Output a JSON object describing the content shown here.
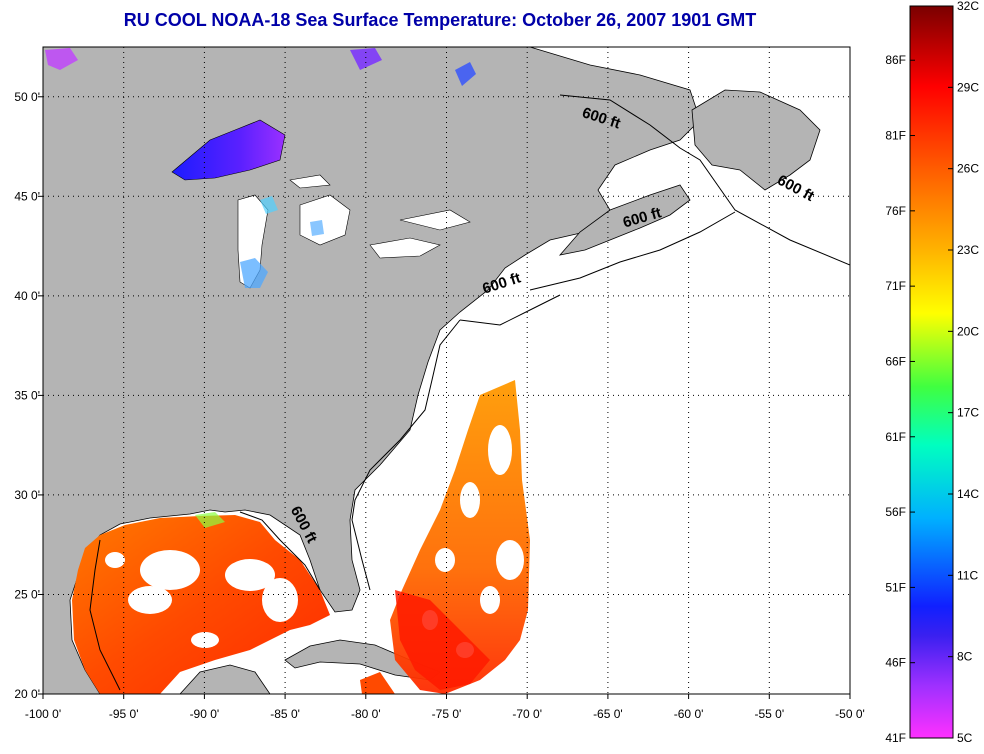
{
  "title": "RU COOL  NOAA-18  Sea Surface Temperature:  October 26, 2007 1901 GMT",
  "map": {
    "lon_range": [
      -100,
      -50
    ],
    "lat_range": [
      20,
      52.5
    ],
    "x_ticks": [
      {
        "value": -100,
        "label": "-100 0'"
      },
      {
        "value": -95,
        "label": "-95 0'"
      },
      {
        "value": -90,
        "label": "-90 0'"
      },
      {
        "value": -85,
        "label": "-85 0'"
      },
      {
        "value": -80,
        "label": "-80 0'"
      },
      {
        "value": -75,
        "label": "-75 0'"
      },
      {
        "value": -70,
        "label": "-70 0'"
      },
      {
        "value": -65,
        "label": "-65 0'"
      },
      {
        "value": -60,
        "label": "-60 0'"
      },
      {
        "value": -55,
        "label": "-55 0'"
      },
      {
        "value": -50,
        "label": "-50 0'"
      }
    ],
    "y_ticks": [
      {
        "value": 20,
        "label": "20 0'"
      },
      {
        "value": 25,
        "label": "25 0'"
      },
      {
        "value": 30,
        "label": "30 0'"
      },
      {
        "value": 35,
        "label": "35 0'"
      },
      {
        "value": 40,
        "label": "40 0'"
      },
      {
        "value": 45,
        "label": "45 0'"
      },
      {
        "value": 50,
        "label": "50 0'"
      }
    ],
    "grid": "dotted",
    "colors": {
      "land": "#b4b4b4",
      "water": "#ffffff",
      "frame": "#000000"
    },
    "contour_labels": [
      {
        "text": "600 ft",
        "lon": -65.5,
        "lat": 48.7,
        "angle": 18
      },
      {
        "text": "600 ft",
        "lon": -53.5,
        "lat": 45.2,
        "angle": 28
      },
      {
        "text": "600 ft",
        "lon": -62.8,
        "lat": 43.7,
        "angle": -16
      },
      {
        "text": "600 ft",
        "lon": -71.5,
        "lat": 40.4,
        "angle": -18
      },
      {
        "text": "600 ft",
        "lon": -84.1,
        "lat": 28.4,
        "angle": 62
      }
    ]
  },
  "colorbar": {
    "top_c": 32,
    "bottom_c": 5,
    "celsius_ticks": [
      {
        "value": 32,
        "label": "32C"
      },
      {
        "value": 29,
        "label": "29C"
      },
      {
        "value": 26,
        "label": "26C"
      },
      {
        "value": 23,
        "label": "23C"
      },
      {
        "value": 20,
        "label": "20C"
      },
      {
        "value": 17,
        "label": "17C"
      },
      {
        "value": 14,
        "label": "14C"
      },
      {
        "value": 11,
        "label": "11C"
      },
      {
        "value": 8,
        "label": "8C"
      },
      {
        "value": 5,
        "label": "5C"
      }
    ],
    "fahrenheit_ticks": [
      {
        "value": 86,
        "label": "86F"
      },
      {
        "value": 81,
        "label": "81F"
      },
      {
        "value": 76,
        "label": "76F"
      },
      {
        "value": 71,
        "label": "71F"
      },
      {
        "value": 66,
        "label": "66F"
      },
      {
        "value": 61,
        "label": "61F"
      },
      {
        "value": 56,
        "label": "56F"
      },
      {
        "value": 51,
        "label": "51F"
      },
      {
        "value": 46,
        "label": "46F"
      },
      {
        "value": 41,
        "label": "41F"
      }
    ],
    "stops": [
      "#7a0000",
      "#ff0000",
      "#ff8c00",
      "#ffff00",
      "#00ff7f",
      "#00e5ff",
      "#0060ff",
      "#1010ff",
      "#8000ff",
      "#ff20ff"
    ]
  }
}
